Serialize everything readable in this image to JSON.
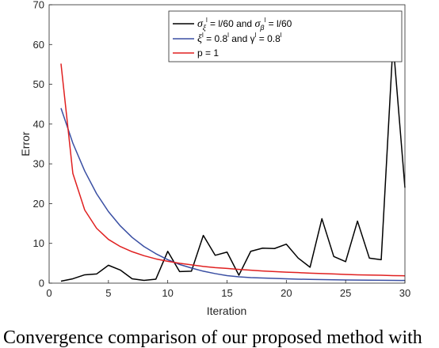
{
  "chart_data": {
    "type": "line",
    "xlabel": "Iteration",
    "ylabel": "Error",
    "xlim": [
      0,
      30
    ],
    "ylim": [
      0,
      70
    ],
    "xticks": [
      0,
      5,
      10,
      15,
      20,
      25,
      30
    ],
    "yticks": [
      0,
      10,
      20,
      30,
      40,
      50,
      60,
      70
    ],
    "legend_position": "top-right",
    "grid": false,
    "x": [
      1,
      2,
      3,
      4,
      5,
      6,
      7,
      8,
      9,
      10,
      11,
      12,
      13,
      14,
      15,
      16,
      17,
      18,
      19,
      20,
      21,
      22,
      23,
      24,
      25,
      26,
      27,
      28,
      29,
      30
    ],
    "series": [
      {
        "legend": {
          "a": "σ",
          "a_sub": "ξ",
          "a_sup": "l",
          "b": " = l/60 and ",
          "c": "σ",
          "c_sub": "β",
          "c_sup": "l",
          "d": " = l/60"
        },
        "color": "#000000",
        "values": [
          0.5,
          1.1,
          2.1,
          2.3,
          4.5,
          3.3,
          1.1,
          0.7,
          1.0,
          8.0,
          2.9,
          3.0,
          12.0,
          7.0,
          7.8,
          2.0,
          8.0,
          8.8,
          8.7,
          9.8,
          6.3,
          4.0,
          16.2,
          6.7,
          5.4,
          15.6,
          6.3,
          5.9,
          60.5,
          24.0
        ]
      },
      {
        "legend": {
          "a": "ξ",
          "a_sup": "l",
          "b": " = 0.8",
          "b_sup": "l",
          "c": " and γ",
          "c_sup": "l",
          "d": " = 0.8",
          "d_sup": "l"
        },
        "color": "#3a4fa3",
        "values": [
          44.0,
          35.2,
          28.2,
          22.5,
          18.0,
          14.4,
          11.5,
          9.2,
          7.4,
          5.9,
          4.7,
          3.8,
          3.0,
          2.4,
          1.9,
          1.6,
          1.4,
          1.3,
          1.2,
          1.1,
          1.0,
          0.95,
          0.9,
          0.85,
          0.8,
          0.78,
          0.75,
          0.72,
          0.7,
          0.68
        ]
      },
      {
        "legend": {
          "a": "p = 1"
        },
        "color": "#e02020",
        "values": [
          55.2,
          27.6,
          18.4,
          13.8,
          11.0,
          9.2,
          7.9,
          6.9,
          6.1,
          5.5,
          5.0,
          4.6,
          4.2,
          3.9,
          3.7,
          3.45,
          3.25,
          3.05,
          2.9,
          2.75,
          2.65,
          2.5,
          2.4,
          2.3,
          2.2,
          2.1,
          2.05,
          1.98,
          1.9,
          1.85
        ]
      }
    ]
  },
  "caption": "Convergence comparison of our proposed method with"
}
